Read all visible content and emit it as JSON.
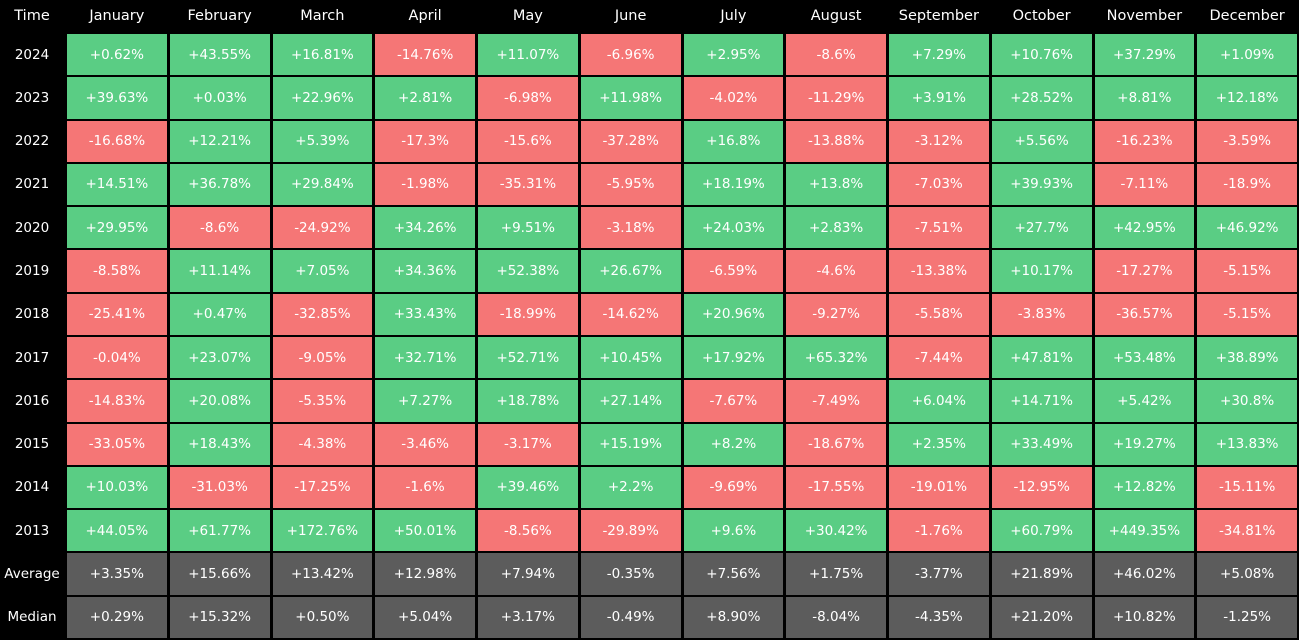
{
  "header": {
    "time": "Time",
    "months": [
      "January",
      "February",
      "March",
      "April",
      "May",
      "June",
      "July",
      "August",
      "September",
      "October",
      "November",
      "December"
    ]
  },
  "table": {
    "rows": [
      {
        "label": "2024",
        "cells": [
          "+0.62%",
          "+43.55%",
          "+16.81%",
          "-14.76%",
          "+11.07%",
          "-6.96%",
          "+2.95%",
          "-8.6%",
          "+7.29%",
          "+10.76%",
          "+37.29%",
          "+1.09%"
        ]
      },
      {
        "label": "2023",
        "cells": [
          "+39.63%",
          "+0.03%",
          "+22.96%",
          "+2.81%",
          "-6.98%",
          "+11.98%",
          "-4.02%",
          "-11.29%",
          "+3.91%",
          "+28.52%",
          "+8.81%",
          "+12.18%"
        ]
      },
      {
        "label": "2022",
        "cells": [
          "-16.68%",
          "+12.21%",
          "+5.39%",
          "-17.3%",
          "-15.6%",
          "-37.28%",
          "+16.8%",
          "-13.88%",
          "-3.12%",
          "+5.56%",
          "-16.23%",
          "-3.59%"
        ]
      },
      {
        "label": "2021",
        "cells": [
          "+14.51%",
          "+36.78%",
          "+29.84%",
          "-1.98%",
          "-35.31%",
          "-5.95%",
          "+18.19%",
          "+13.8%",
          "-7.03%",
          "+39.93%",
          "-7.11%",
          "-18.9%"
        ]
      },
      {
        "label": "2020",
        "cells": [
          "+29.95%",
          "-8.6%",
          "-24.92%",
          "+34.26%",
          "+9.51%",
          "-3.18%",
          "+24.03%",
          "+2.83%",
          "-7.51%",
          "+27.7%",
          "+42.95%",
          "+46.92%"
        ]
      },
      {
        "label": "2019",
        "cells": [
          "-8.58%",
          "+11.14%",
          "+7.05%",
          "+34.36%",
          "+52.38%",
          "+26.67%",
          "-6.59%",
          "-4.6%",
          "-13.38%",
          "+10.17%",
          "-17.27%",
          "-5.15%"
        ]
      },
      {
        "label": "2018",
        "cells": [
          "-25.41%",
          "+0.47%",
          "-32.85%",
          "+33.43%",
          "-18.99%",
          "-14.62%",
          "+20.96%",
          "-9.27%",
          "-5.58%",
          "-3.83%",
          "-36.57%",
          "-5.15%"
        ]
      },
      {
        "label": "2017",
        "cells": [
          "-0.04%",
          "+23.07%",
          "-9.05%",
          "+32.71%",
          "+52.71%",
          "+10.45%",
          "+17.92%",
          "+65.32%",
          "-7.44%",
          "+47.81%",
          "+53.48%",
          "+38.89%"
        ]
      },
      {
        "label": "2016",
        "cells": [
          "-14.83%",
          "+20.08%",
          "-5.35%",
          "+7.27%",
          "+18.78%",
          "+27.14%",
          "-7.67%",
          "-7.49%",
          "+6.04%",
          "+14.71%",
          "+5.42%",
          "+30.8%"
        ]
      },
      {
        "label": "2015",
        "cells": [
          "-33.05%",
          "+18.43%",
          "-4.38%",
          "-3.46%",
          "-3.17%",
          "+15.19%",
          "+8.2%",
          "-18.67%",
          "+2.35%",
          "+33.49%",
          "+19.27%",
          "+13.83%"
        ]
      },
      {
        "label": "2014",
        "cells": [
          "+10.03%",
          "-31.03%",
          "-17.25%",
          "-1.6%",
          "+39.46%",
          "+2.2%",
          "-9.69%",
          "-17.55%",
          "-19.01%",
          "-12.95%",
          "+12.82%",
          "-15.11%"
        ]
      },
      {
        "label": "2013",
        "cells": [
          "+44.05%",
          "+61.77%",
          "+172.76%",
          "+50.01%",
          "-8.56%",
          "-29.89%",
          "+9.6%",
          "+30.42%",
          "-1.76%",
          "+60.79%",
          "+449.35%",
          "-34.81%"
        ]
      }
    ],
    "summary_rows": [
      {
        "label": "Average",
        "cells": [
          "+3.35%",
          "+15.66%",
          "+13.42%",
          "+12.98%",
          "+7.94%",
          "-0.35%",
          "+7.56%",
          "+1.75%",
          "-3.77%",
          "+21.89%",
          "+46.02%",
          "+5.08%"
        ]
      },
      {
        "label": "Median",
        "cells": [
          "+0.29%",
          "+15.32%",
          "+0.50%",
          "+5.04%",
          "+3.17%",
          "-0.49%",
          "+8.90%",
          "-8.04%",
          "-4.35%",
          "+21.20%",
          "+10.82%",
          "-1.25%"
        ]
      }
    ]
  }
}
